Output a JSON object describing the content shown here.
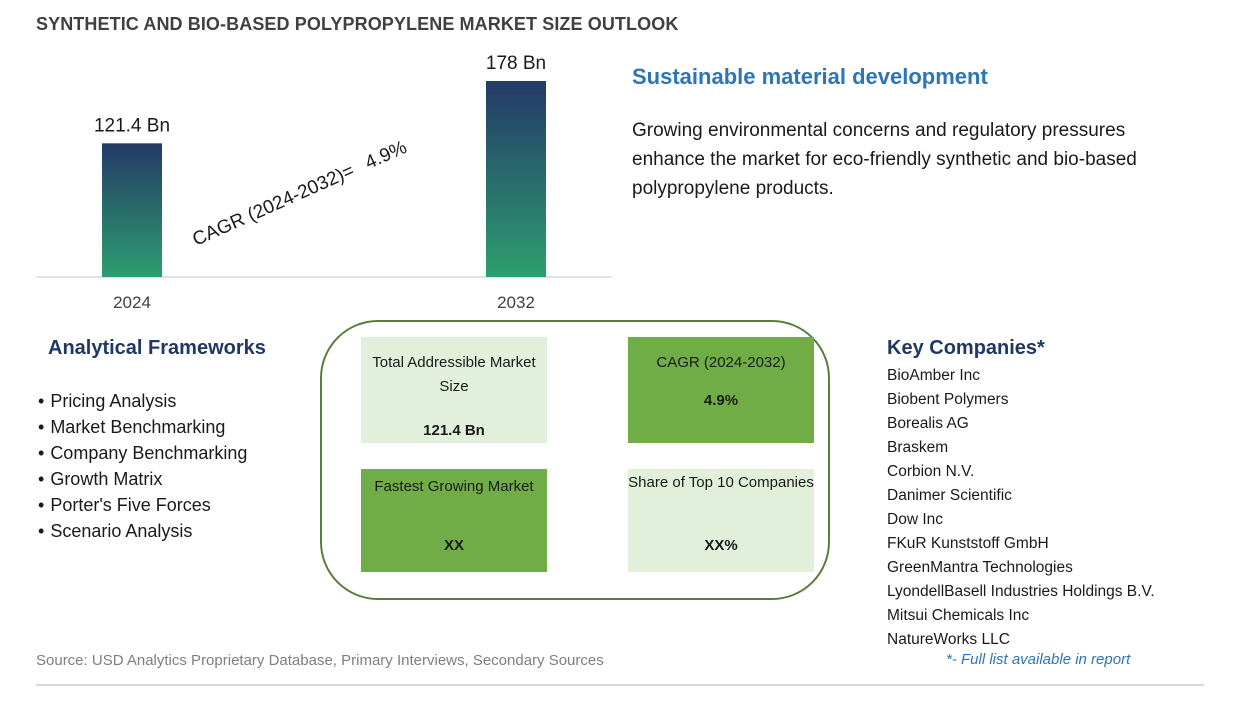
{
  "title": "SYNTHETIC AND BIO-BASED POLYPROPYLENE MARKET SIZE OUTLOOK",
  "chart_data": {
    "type": "bar",
    "categories": [
      "2024",
      "2032"
    ],
    "values": [
      121.4,
      178
    ],
    "value_labels": [
      "121.4 Bn",
      "178 Bn"
    ],
    "unit": "Bn",
    "annotation": {
      "label": "CAGR (2024-2032)=",
      "value": "4.9%"
    },
    "grid": false,
    "legend": "none",
    "colors": {
      "bar_bottom": "#2e9e6f",
      "bar_top": "#243a68",
      "axis": "#d9d9d9"
    }
  },
  "insight": {
    "title": "Sustainable material development",
    "body": "Growing environmental concerns and regulatory pressures enhance the market for eco-friendly synthetic and bio-based polypropylene products."
  },
  "frameworks": {
    "title": "Analytical Frameworks",
    "items": [
      "Pricing Analysis",
      "Market Benchmarking",
      "Company Benchmarking",
      "Growth Matrix",
      "Porter's Five Forces",
      "Scenario Analysis"
    ]
  },
  "metrics": {
    "tam": {
      "label": "Total Addressible Market Size",
      "value": "121.4 Bn"
    },
    "cagr": {
      "label": "CAGR (2024-2032)",
      "value": "4.9%"
    },
    "fastest": {
      "label": "Fastest Growing Market",
      "value": "XX"
    },
    "share": {
      "label": "Share of Top 10 Companies",
      "value": "XX%"
    }
  },
  "companies": {
    "title": "Key Companies*",
    "items": [
      "BioAmber Inc",
      "Biobent Polymers",
      "Borealis AG",
      "Braskem",
      "Corbion N.V.",
      "Danimer Scientific",
      "Dow Inc",
      "FKuR Kunststoff GmbH",
      "GreenMantra Technologies",
      "LyondellBasell Industries Holdings B.V.",
      "Mitsui Chemicals Inc",
      "NatureWorks LLC"
    ],
    "footnote": "*- Full list available in report"
  },
  "source": "Source: USD Analytics Proprietary Database, Primary Interviews, Secondary Sources",
  "colors": {
    "title": "#404040",
    "accent_blue": "#2e75b6",
    "heading_navy": "#1f3864",
    "tile_light": "#e2efda",
    "tile_dark": "#70ad47",
    "panel_border": "#5a7d3e"
  }
}
